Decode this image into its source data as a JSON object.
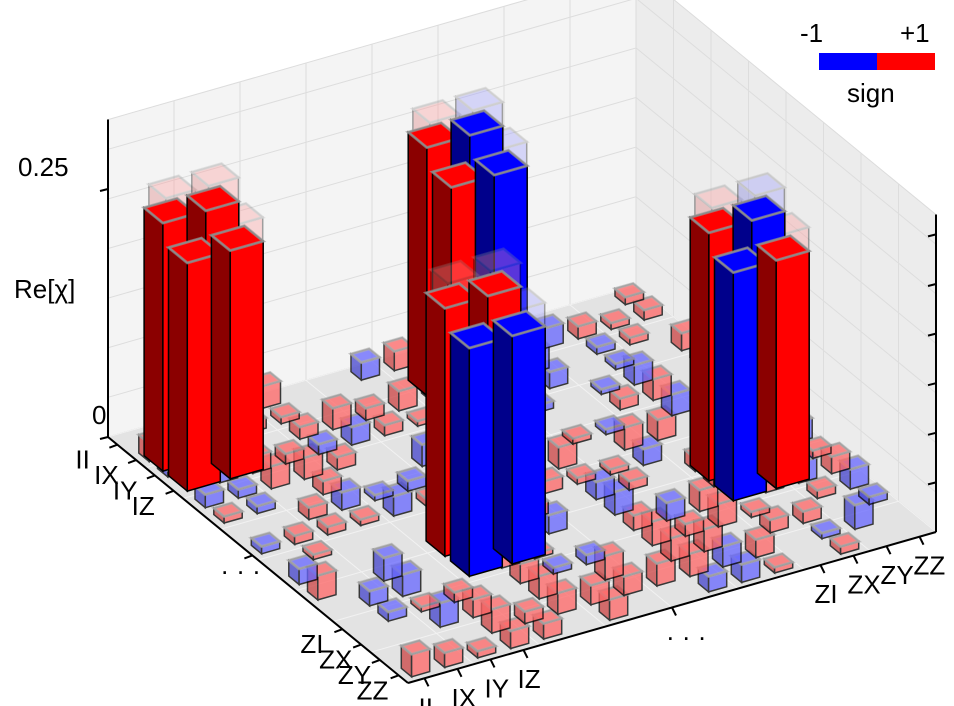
{
  "chart_data": {
    "type": "bar3d",
    "title": "",
    "zlabel": "Re[χ]",
    "z_ticks": [
      "0.25",
      "0"
    ],
    "zlim": [
      0,
      0.3
    ],
    "row_labels": [
      "II",
      "IX",
      "IY",
      "IZ",
      "· · ·",
      "ZI",
      "ZX",
      "ZY",
      "ZZ"
    ],
    "col_labels": [
      "II",
      "IX",
      "IY",
      "IZ",
      "· · ·",
      "ZI",
      "ZX",
      "ZY",
      "ZZ"
    ],
    "legend": {
      "title": "sign",
      "min_label": "-1",
      "max_label": "+1",
      "colors": [
        "#0000ff",
        "#ff0000"
      ],
      "placement": "top-right"
    },
    "colors": {
      "positive": "#ff0000",
      "negative": "#0000ff"
    },
    "dominant_blocks": [
      {
        "block": "back-left",
        "cells": [
          {
            "values": [
              0.25,
              0.25,
              0.23,
              0.23
            ],
            "signs": [
              "+",
              "+",
              "+",
              "+"
            ]
          }
        ]
      },
      {
        "block": "front-left",
        "cells": [
          {
            "values": [
              0.25,
              0.25,
              0.23,
              0.23
            ],
            "signs": [
              "+",
              "+",
              "-",
              "-"
            ]
          }
        ]
      },
      {
        "block": "back-right",
        "cells": [
          {
            "values": [
              0.25,
              0.25,
              0.23,
              0.23
            ],
            "signs": [
              "+",
              "-",
              "+",
              "-"
            ]
          }
        ]
      },
      {
        "block": "front-right",
        "cells": [
          {
            "values": [
              0.25,
              0.25,
              0.23,
              0.23
            ],
            "signs": [
              "+",
              "-",
              "-",
              "+"
            ]
          }
        ]
      }
    ],
    "grid": true
  }
}
